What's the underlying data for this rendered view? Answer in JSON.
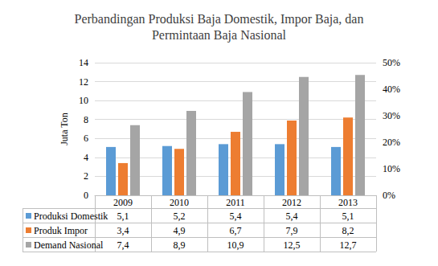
{
  "chart_data": {
    "type": "bar",
    "title": "Perbandingan Produksi Baja Domestik, Impor Baja, dan\nPermintaan Baja Nasional",
    "y_label": "Juta Ton",
    "categories": [
      "2009",
      "2010",
      "2011",
      "2012",
      "2013"
    ],
    "series": [
      {
        "name": "Produksi Domestik",
        "color": "#5B9BD5",
        "values": [
          5.1,
          5.2,
          5.4,
          5.4,
          5.1
        ],
        "value_labels": [
          "5,1",
          "5,2",
          "5,4",
          "5,4",
          "5,1"
        ]
      },
      {
        "name": "Produk Impor",
        "color": "#ED7D31",
        "values": [
          3.4,
          4.9,
          6.7,
          7.9,
          8.2
        ],
        "value_labels": [
          "3,4",
          "4,9",
          "6,7",
          "7,9",
          "8,2"
        ]
      },
      {
        "name": "Demand Nasional",
        "color": "#A5A5A5",
        "values": [
          7.4,
          8.9,
          10.9,
          12.5,
          12.7
        ],
        "value_labels": [
          "7,4",
          "8,9",
          "10,9",
          "12,5",
          "12,7"
        ]
      }
    ],
    "ylim": [
      0,
      14
    ],
    "yticks": [
      0,
      2,
      4,
      6,
      8,
      10,
      12,
      14
    ],
    "y2lim": [
      0,
      50
    ],
    "y2ticks": [
      {
        "value": 0,
        "label": "0%"
      },
      {
        "value": 10,
        "label": "10%"
      },
      {
        "value": 20,
        "label": "20%"
      },
      {
        "value": 30,
        "label": "30%"
      },
      {
        "value": 40,
        "label": "40%"
      },
      {
        "value": 50,
        "label": "50%"
      }
    ],
    "grid": true
  }
}
